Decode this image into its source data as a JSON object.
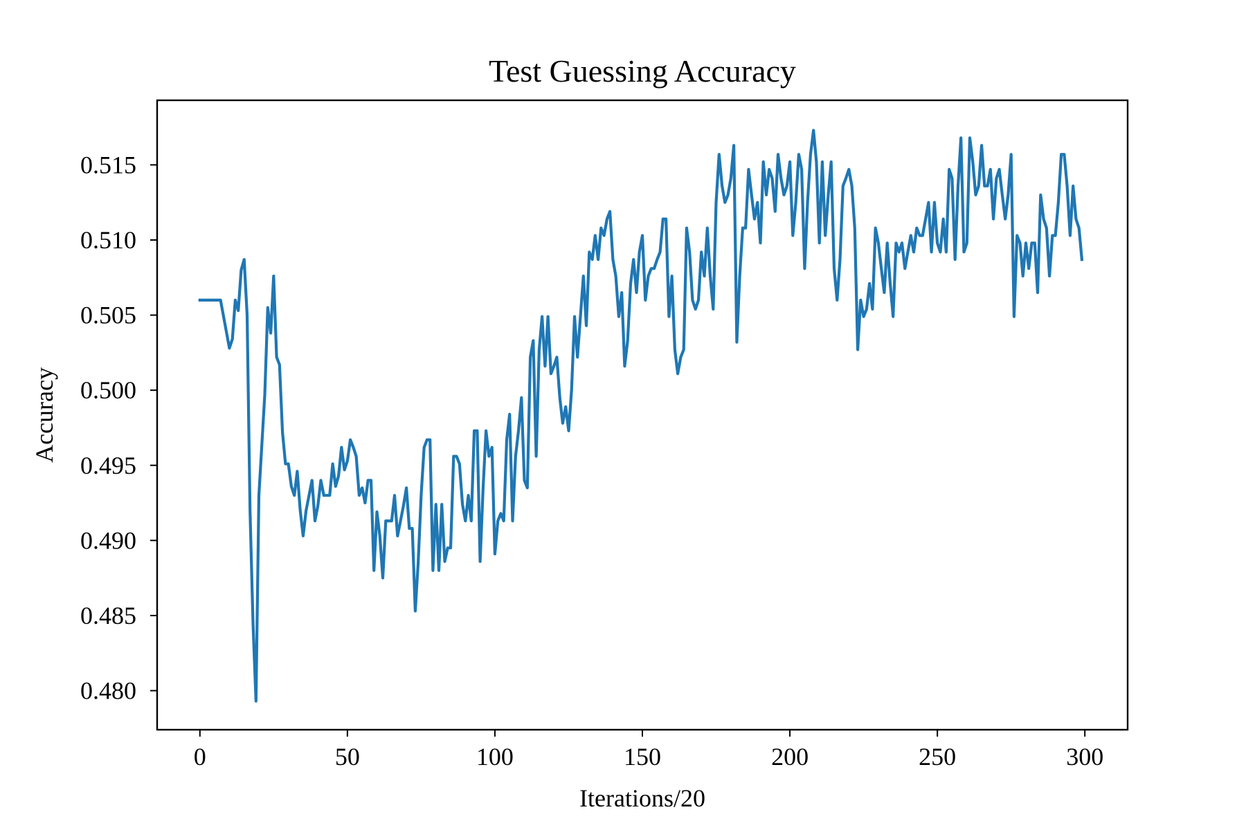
{
  "chart_data": {
    "type": "line",
    "title": "Test Guessing Accuracy",
    "xlabel": "Iterations/20",
    "ylabel": "Accuracy",
    "xlim": [
      -14.5,
      314.5
    ],
    "ylim": [
      0.4774,
      0.5193
    ],
    "xticks": [
      0,
      50,
      100,
      150,
      200,
      250,
      300
    ],
    "xtick_labels": [
      "0",
      "50",
      "100",
      "150",
      "200",
      "250",
      "300"
    ],
    "yticks": [
      0.48,
      0.485,
      0.49,
      0.495,
      0.5,
      0.505,
      0.51,
      0.515
    ],
    "ytick_labels": [
      "0.480",
      "0.485",
      "0.490",
      "0.495",
      "0.500",
      "0.505",
      "0.510",
      "0.515"
    ],
    "grid": false,
    "series": [
      {
        "name": "",
        "color": "#1f77b4",
        "x": [
          0,
          7,
          10,
          11,
          12,
          13,
          14,
          15,
          16,
          17,
          18,
          19,
          20,
          22,
          23,
          24,
          25,
          26,
          27,
          28,
          29,
          30,
          31,
          32,
          33,
          34,
          35,
          36,
          37,
          38,
          39,
          40,
          41,
          42,
          43,
          44,
          45,
          46,
          47,
          48,
          49,
          50,
          51,
          52,
          53,
          54,
          55,
          56,
          57,
          58,
          59,
          60,
          61,
          62,
          63,
          64,
          65,
          66,
          67,
          68,
          69,
          70,
          71,
          72,
          73,
          74,
          75,
          76,
          77,
          78,
          79,
          80,
          81,
          82,
          83,
          84,
          85,
          86,
          87,
          88,
          89,
          90,
          91,
          92,
          93,
          94,
          95,
          96,
          97,
          98,
          99,
          100,
          101,
          102,
          103,
          104,
          105,
          106,
          107,
          108,
          109,
          110,
          111,
          112,
          113,
          114,
          115,
          116,
          117,
          118,
          119,
          120,
          121,
          122,
          123,
          124,
          125,
          126,
          127,
          128,
          129,
          130,
          131,
          132,
          133,
          134,
          135,
          136,
          137,
          138,
          139,
          140,
          141,
          142,
          143,
          144,
          145,
          146,
          147,
          148,
          149,
          150,
          151,
          152,
          153,
          154,
          155,
          156,
          157,
          158,
          159,
          160,
          161,
          162,
          163,
          164,
          165,
          166,
          167,
          168,
          169,
          170,
          171,
          172,
          173,
          174,
          175,
          176,
          177,
          178,
          179,
          180,
          181,
          182,
          183,
          184,
          185,
          186,
          187,
          188,
          189,
          190,
          191,
          192,
          193,
          194,
          195,
          196,
          197,
          198,
          199,
          200,
          201,
          202,
          203,
          204,
          205,
          206,
          207,
          208,
          209,
          210,
          211,
          212,
          213,
          214,
          215,
          216,
          217,
          218,
          219,
          220,
          221,
          222,
          223,
          224,
          225,
          226,
          227,
          228,
          229,
          230,
          231,
          232,
          233,
          234,
          235,
          236,
          237,
          238,
          239,
          240,
          241,
          242,
          243,
          244,
          245,
          246,
          247,
          248,
          249,
          250,
          251,
          252,
          253,
          254,
          255,
          256,
          257,
          258,
          259,
          260,
          261,
          262,
          263,
          264,
          265,
          266,
          267,
          268,
          269,
          270,
          271,
          272,
          273,
          274,
          275,
          276,
          277,
          278,
          279,
          280,
          281,
          282,
          283,
          284,
          285,
          286,
          287,
          288,
          289,
          290,
          291,
          292,
          293,
          294,
          295,
          296,
          297,
          298,
          299
        ],
        "y": [
          0.506,
          0.506,
          0.5028,
          0.5034,
          0.506,
          0.5053,
          0.508,
          0.5087,
          0.505,
          0.492,
          0.4845,
          0.4793,
          0.493,
          0.4997,
          0.5055,
          0.5038,
          0.5076,
          0.5022,
          0.5017,
          0.4972,
          0.4951,
          0.4951,
          0.4936,
          0.493,
          0.4946,
          0.492,
          0.4903,
          0.492,
          0.493,
          0.494,
          0.4913,
          0.4923,
          0.494,
          0.493,
          0.493,
          0.493,
          0.4951,
          0.4936,
          0.4943,
          0.4962,
          0.4947,
          0.4953,
          0.4967,
          0.4962,
          0.4956,
          0.493,
          0.4935,
          0.4925,
          0.494,
          0.494,
          0.488,
          0.4919,
          0.4903,
          0.4875,
          0.4913,
          0.4913,
          0.4913,
          0.493,
          0.4903,
          0.4913,
          0.4923,
          0.4935,
          0.4908,
          0.4908,
          0.4853,
          0.4885,
          0.493,
          0.4962,
          0.4967,
          0.4967,
          0.488,
          0.4924,
          0.488,
          0.4924,
          0.4886,
          0.4895,
          0.4895,
          0.4956,
          0.4956,
          0.4951,
          0.4924,
          0.4913,
          0.493,
          0.4913,
          0.4973,
          0.4973,
          0.4886,
          0.4935,
          0.4973,
          0.4956,
          0.4962,
          0.4891,
          0.4913,
          0.4918,
          0.4913,
          0.4967,
          0.4984,
          0.4913,
          0.4956,
          0.4973,
          0.4995,
          0.494,
          0.4935,
          0.5022,
          0.5033,
          0.4956,
          0.5027,
          0.5049,
          0.5016,
          0.5049,
          0.5011,
          0.5016,
          0.5022,
          0.4995,
          0.4978,
          0.4989,
          0.4973,
          0.5,
          0.5049,
          0.5022,
          0.5049,
          0.5076,
          0.5043,
          0.5092,
          0.5087,
          0.5103,
          0.5087,
          0.5108,
          0.5103,
          0.5114,
          0.5119,
          0.5087,
          0.5076,
          0.5049,
          0.5065,
          0.5016,
          0.5033,
          0.5071,
          0.5087,
          0.5065,
          0.5092,
          0.5103,
          0.506,
          0.5076,
          0.5081,
          0.5081,
          0.5087,
          0.5092,
          0.5114,
          0.5114,
          0.5049,
          0.5076,
          0.5027,
          0.5011,
          0.5022,
          0.5027,
          0.5108,
          0.5092,
          0.506,
          0.5054,
          0.506,
          0.5092,
          0.5076,
          0.5108,
          0.5076,
          0.5054,
          0.5125,
          0.5157,
          0.5136,
          0.5125,
          0.513,
          0.5141,
          0.5163,
          0.5032,
          0.5076,
          0.5108,
          0.5108,
          0.5147,
          0.513,
          0.5114,
          0.5125,
          0.5098,
          0.5152,
          0.513,
          0.5147,
          0.5141,
          0.5119,
          0.5157,
          0.5141,
          0.513,
          0.5136,
          0.5152,
          0.5103,
          0.5125,
          0.5157,
          0.5147,
          0.5081,
          0.5125,
          0.5157,
          0.5173,
          0.5152,
          0.5098,
          0.5152,
          0.5103,
          0.513,
          0.5152,
          0.5081,
          0.506,
          0.5087,
          0.5136,
          0.5141,
          0.5147,
          0.5136,
          0.5108,
          0.5027,
          0.506,
          0.5049,
          0.5054,
          0.5071,
          0.5054,
          0.5108,
          0.5098,
          0.5081,
          0.5065,
          0.5098,
          0.5071,
          0.5049,
          0.5098,
          0.5092,
          0.5098,
          0.5081,
          0.5092,
          0.5103,
          0.5092,
          0.5108,
          0.5103,
          0.5103,
          0.5114,
          0.5125,
          0.5092,
          0.5125,
          0.5098,
          0.5092,
          0.5114,
          0.5092,
          0.5147,
          0.5141,
          0.5087,
          0.5136,
          0.5168,
          0.5092,
          0.5098,
          0.5168,
          0.5152,
          0.513,
          0.5136,
          0.5163,
          0.5136,
          0.5136,
          0.5147,
          0.5114,
          0.5141,
          0.5147,
          0.513,
          0.5114,
          0.513,
          0.5157,
          0.5049,
          0.5103,
          0.5098,
          0.5076,
          0.5098,
          0.5081,
          0.5098,
          0.5098,
          0.5065,
          0.513,
          0.5114,
          0.5108,
          0.5076,
          0.5103,
          0.5103,
          0.5125,
          0.5157,
          0.5157,
          0.5136,
          0.5103,
          0.5136,
          0.5114,
          0.5108,
          0.5087
        ]
      }
    ]
  }
}
